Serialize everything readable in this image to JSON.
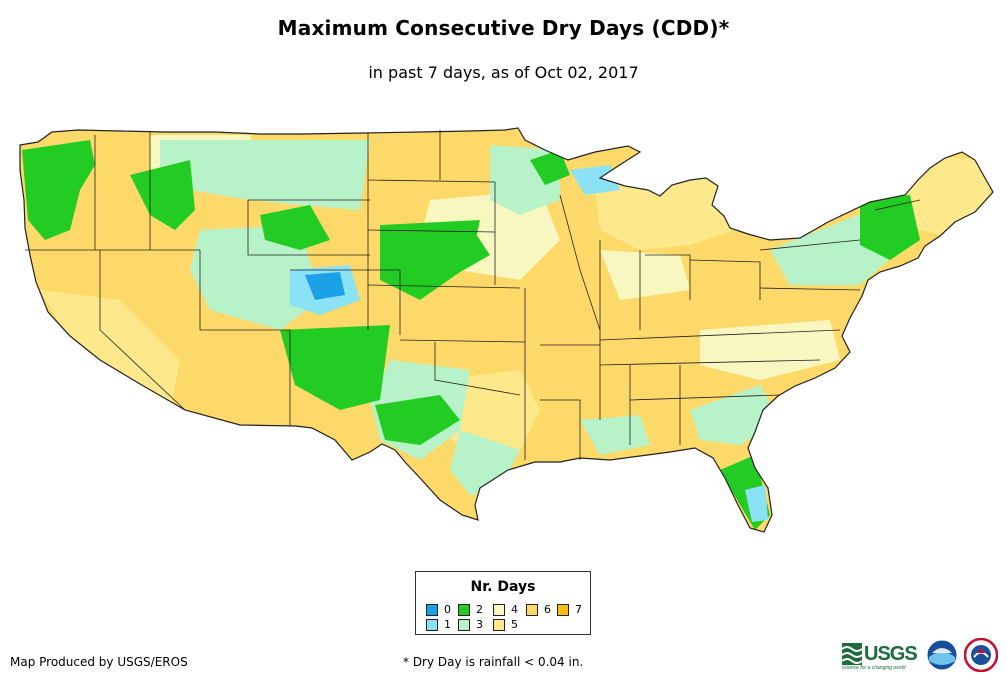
{
  "title": "Maximum Consecutive Dry Days (CDD)*",
  "subtitle": "in past 7 days, as of Oct 02, 2017",
  "legend": {
    "title": "Nr. Days",
    "items": [
      {
        "label": "0",
        "color": "#1ba1e6"
      },
      {
        "label": "1",
        "color": "#8ce2f5"
      },
      {
        "label": "2",
        "color": "#22cc22"
      },
      {
        "label": "3",
        "color": "#b7f2c8"
      },
      {
        "label": "4",
        "color": "#f9f7c0"
      },
      {
        "label": "5",
        "color": "#fde98c"
      },
      {
        "label": "6",
        "color": "#fdd96a"
      },
      {
        "label": "7",
        "color": "#f7bd10"
      }
    ]
  },
  "credit": "Map Produced by USGS/EROS",
  "footnote": "* Dry Day is rainfall < 0.04 in.",
  "logos": {
    "usgs": "USGS",
    "usgs_tagline": "science for a changing world",
    "noaa": "noaa-logo",
    "nws": "nws-logo"
  },
  "map_colors": {
    "base": "#fdd96a",
    "light": "#fde98c",
    "green": "#22cc22",
    "mint": "#b7f2c8",
    "cyan": "#8ce2f5",
    "blue": "#1ba1e6",
    "cream": "#f9f7c0",
    "border": "#222222"
  }
}
